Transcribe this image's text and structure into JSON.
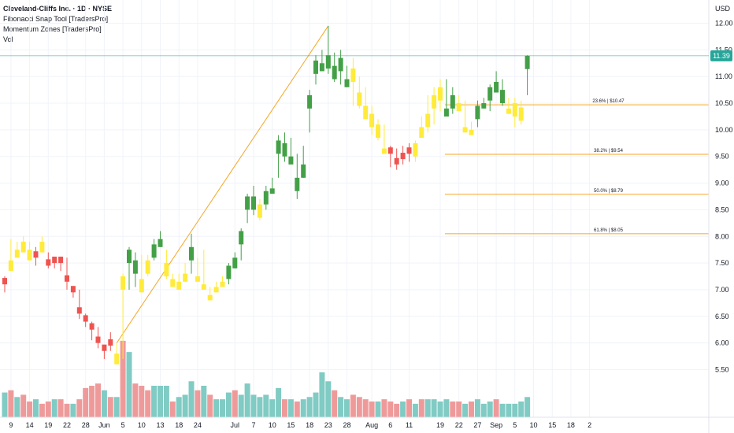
{
  "legend": {
    "title": "Cleveland-Cliffs Inc. · 1D · NYSE",
    "indicators": [
      "Fibonacci Snap Tool [TradersPro]",
      "Momentum Zones [TradersPro]",
      "Vol"
    ]
  },
  "axis": {
    "currency": "USD"
  },
  "last_price": {
    "value": 11.39,
    "label": "11.39",
    "color": "#26a69a"
  },
  "colors": {
    "up": "#43a047",
    "down": "#ef5350",
    "neutral": "#ffeb3b",
    "vol_up": "#80cbc4",
    "vol_down": "#ef9a9a",
    "fib": "#f5a623"
  },
  "chart_data": {
    "type": "candlestick",
    "y_ticks": [
      "5.50",
      "6.00",
      "6.50",
      "7.00",
      "7.50",
      "8.00",
      "8.50",
      "9.00",
      "9.50",
      "10.00",
      "10.50",
      "11.00",
      "11.50",
      "12.00"
    ],
    "ylim": [
      5.3,
      12.2
    ],
    "x_ticks": [
      {
        "label": "9",
        "i": 1
      },
      {
        "label": "14",
        "i": 4
      },
      {
        "label": "19",
        "i": 7
      },
      {
        "label": "22",
        "i": 10
      },
      {
        "label": "28",
        "i": 13
      },
      {
        "label": "Jun",
        "i": 16
      },
      {
        "label": "5",
        "i": 19
      },
      {
        "label": "10",
        "i": 22
      },
      {
        "label": "13",
        "i": 25
      },
      {
        "label": "18",
        "i": 28
      },
      {
        "label": "24",
        "i": 31
      },
      {
        "label": "Jul",
        "i": 37
      },
      {
        "label": "7",
        "i": 40
      },
      {
        "label": "10",
        "i": 43
      },
      {
        "label": "15",
        "i": 46
      },
      {
        "label": "18",
        "i": 49
      },
      {
        "label": "23",
        "i": 52
      },
      {
        "label": "28",
        "i": 55
      },
      {
        "label": "Aug",
        "i": 59
      },
      {
        "label": "6",
        "i": 62
      },
      {
        "label": "11",
        "i": 65
      },
      {
        "label": "19",
        "i": 70
      },
      {
        "label": "22",
        "i": 73
      },
      {
        "label": "27",
        "i": 76
      },
      {
        "label": "Sep",
        "i": 79
      },
      {
        "label": "5",
        "i": 82
      },
      {
        "label": "10",
        "i": 85
      },
      {
        "label": "15",
        "i": 88
      },
      {
        "label": "18",
        "i": 91
      },
      {
        "label": "2",
        "i": 94
      }
    ],
    "candles": [
      [
        7.1,
        7.1,
        6.95,
        7.25,
        "down"
      ],
      [
        7.55,
        7.55,
        7.35,
        7.95,
        "neutral"
      ],
      [
        7.75,
        7.75,
        7.6,
        7.9,
        "neutral"
      ],
      [
        7.9,
        7.9,
        7.7,
        8.0,
        "neutral"
      ],
      [
        7.75,
        7.75,
        7.55,
        7.9,
        "neutral"
      ],
      [
        7.6,
        7.6,
        7.45,
        7.8,
        "down"
      ],
      [
        7.9,
        7.9,
        7.7,
        8.0,
        "neutral"
      ],
      [
        7.45,
        7.45,
        7.4,
        7.7,
        "down"
      ],
      [
        7.5,
        7.5,
        7.4,
        7.6,
        "down"
      ],
      [
        7.5,
        7.5,
        7.35,
        7.55,
        "down"
      ],
      [
        7.15,
        7.15,
        7.0,
        7.6,
        "down"
      ],
      [
        6.95,
        6.95,
        6.85,
        7.05,
        "down"
      ],
      [
        6.55,
        6.55,
        6.45,
        7.0,
        "down"
      ],
      [
        6.4,
        6.4,
        6.3,
        6.55,
        "down"
      ],
      [
        6.25,
        6.25,
        6.05,
        6.4,
        "down"
      ],
      [
        6.0,
        6.0,
        5.9,
        6.3,
        "down"
      ],
      [
        5.85,
        5.85,
        5.7,
        5.95,
        "down"
      ],
      [
        5.95,
        5.95,
        5.85,
        6.2,
        "down"
      ],
      [
        5.8,
        5.8,
        5.6,
        6.0,
        "neutral"
      ],
      [
        7.25,
        7.25,
        5.7,
        7.3,
        "neutral"
      ],
      [
        7.75,
        7.75,
        7.0,
        7.8,
        "up"
      ],
      [
        7.55,
        7.55,
        7.05,
        7.7,
        "up"
      ],
      [
        7.2,
        7.2,
        6.95,
        7.65,
        "neutral"
      ],
      [
        7.55,
        7.55,
        7.25,
        7.65,
        "neutral"
      ],
      [
        7.85,
        7.85,
        7.55,
        7.95,
        "up"
      ],
      [
        7.95,
        7.95,
        7.8,
        8.1,
        "up"
      ],
      [
        7.5,
        7.5,
        7.2,
        7.75,
        "neutral"
      ],
      [
        7.2,
        7.2,
        7.05,
        7.3,
        "neutral"
      ],
      [
        7.15,
        7.15,
        7.0,
        7.3,
        "neutral"
      ],
      [
        7.3,
        7.3,
        7.15,
        7.5,
        "neutral"
      ],
      [
        7.8,
        7.8,
        7.3,
        8.05,
        "up"
      ],
      [
        7.25,
        7.25,
        7.15,
        7.6,
        "neutral"
      ],
      [
        7.1,
        7.1,
        7.0,
        7.75,
        "neutral"
      ],
      [
        6.9,
        6.9,
        6.8,
        7.05,
        "neutral"
      ],
      [
        7.05,
        7.05,
        6.95,
        7.15,
        "neutral"
      ],
      [
        7.15,
        7.15,
        7.05,
        7.25,
        "neutral"
      ],
      [
        7.45,
        7.45,
        7.1,
        7.5,
        "up"
      ],
      [
        7.6,
        7.6,
        7.4,
        7.7,
        "up"
      ],
      [
        8.1,
        8.1,
        7.55,
        8.15,
        "up"
      ],
      [
        8.75,
        8.75,
        8.25,
        8.8,
        "up"
      ],
      [
        8.75,
        8.75,
        8.4,
        8.95,
        "up"
      ],
      [
        8.6,
        8.6,
        8.3,
        8.7,
        "neutral"
      ],
      [
        8.85,
        8.85,
        8.5,
        8.95,
        "up"
      ],
      [
        8.9,
        8.9,
        8.8,
        9.1,
        "up"
      ],
      [
        9.8,
        9.8,
        9.1,
        9.9,
        "up"
      ],
      [
        9.75,
        9.75,
        9.4,
        9.95,
        "up"
      ],
      [
        9.5,
        9.5,
        9.35,
        9.85,
        "up"
      ],
      [
        9.1,
        9.1,
        8.7,
        9.55,
        "up"
      ],
      [
        9.35,
        9.35,
        9.1,
        9.7,
        "up"
      ],
      [
        10.65,
        10.65,
        9.95,
        10.75,
        "up"
      ],
      [
        11.3,
        11.3,
        10.85,
        11.4,
        "up"
      ],
      [
        11.25,
        11.25,
        11.1,
        11.5,
        "up"
      ],
      [
        11.4,
        11.4,
        11.05,
        11.95,
        "up"
      ],
      [
        11.2,
        11.2,
        10.9,
        11.45,
        "up"
      ],
      [
        11.35,
        11.35,
        10.85,
        11.5,
        "up"
      ],
      [
        10.95,
        10.95,
        10.8,
        11.2,
        "up"
      ],
      [
        11.15,
        11.15,
        10.45,
        11.35,
        "neutral"
      ],
      [
        10.7,
        10.7,
        10.4,
        11.0,
        "neutral"
      ],
      [
        10.45,
        10.45,
        10.2,
        10.8,
        "neutral"
      ],
      [
        10.3,
        10.3,
        9.9,
        10.45,
        "neutral"
      ],
      [
        10.1,
        10.1,
        9.8,
        10.2,
        "neutral"
      ],
      [
        9.65,
        9.65,
        9.55,
        10.1,
        "neutral"
      ],
      [
        9.55,
        9.55,
        9.3,
        9.7,
        "down"
      ],
      [
        9.35,
        9.35,
        9.25,
        9.65,
        "down"
      ],
      [
        9.45,
        9.45,
        9.35,
        9.7,
        "down"
      ],
      [
        9.55,
        9.55,
        9.4,
        9.75,
        "down"
      ],
      [
        9.75,
        9.75,
        9.4,
        9.8,
        "neutral"
      ],
      [
        10.05,
        10.05,
        9.85,
        10.25,
        "neutral"
      ],
      [
        10.3,
        10.3,
        9.95,
        10.65,
        "neutral"
      ],
      [
        10.65,
        10.65,
        10.1,
        10.8,
        "neutral"
      ],
      [
        10.8,
        10.8,
        10.35,
        10.95,
        "neutral"
      ],
      [
        10.4,
        10.4,
        10.25,
        10.95,
        "up"
      ],
      [
        10.65,
        10.65,
        10.3,
        10.8,
        "up"
      ],
      [
        10.5,
        10.5,
        10.35,
        10.65,
        "neutral"
      ],
      [
        10.05,
        10.05,
        9.95,
        10.55,
        "neutral"
      ],
      [
        10.0,
        10.0,
        9.9,
        10.15,
        "neutral"
      ],
      [
        10.45,
        10.45,
        10.05,
        10.55,
        "up"
      ],
      [
        10.5,
        10.5,
        10.4,
        10.6,
        "up"
      ],
      [
        10.8,
        10.8,
        10.35,
        10.85,
        "up"
      ],
      [
        10.9,
        10.9,
        10.7,
        11.1,
        "up"
      ],
      [
        10.75,
        10.75,
        10.45,
        10.95,
        "up"
      ],
      [
        10.4,
        10.4,
        10.3,
        10.6,
        "neutral"
      ],
      [
        10.5,
        10.5,
        10.05,
        10.6,
        "neutral"
      ],
      [
        10.42,
        10.42,
        10.1,
        10.55,
        "neutral"
      ],
      [
        11.39,
        11.39,
        10.65,
        11.4,
        "up"
      ]
    ],
    "volume": [
      [
        0.55,
        "vol_up"
      ],
      [
        0.6,
        "vol_down"
      ],
      [
        0.45,
        "vol_up"
      ],
      [
        0.5,
        "vol_down"
      ],
      [
        0.35,
        "vol_down"
      ],
      [
        0.4,
        "vol_up"
      ],
      [
        0.3,
        "vol_down"
      ],
      [
        0.35,
        "vol_down"
      ],
      [
        0.4,
        "vol_up"
      ],
      [
        0.4,
        "vol_down"
      ],
      [
        0.3,
        "vol_down"
      ],
      [
        0.3,
        "vol_up"
      ],
      [
        0.4,
        "vol_down"
      ],
      [
        0.65,
        "vol_down"
      ],
      [
        0.7,
        "vol_down"
      ],
      [
        0.75,
        "vol_down"
      ],
      [
        0.6,
        "vol_up"
      ],
      [
        0.45,
        "vol_down"
      ],
      [
        0.45,
        "vol_up"
      ],
      [
        1.7,
        "vol_down"
      ],
      [
        1.45,
        "vol_up"
      ],
      [
        0.75,
        "vol_down"
      ],
      [
        0.7,
        "vol_down"
      ],
      [
        0.6,
        "vol_down"
      ],
      [
        0.7,
        "vol_up"
      ],
      [
        0.7,
        "vol_up"
      ],
      [
        0.7,
        "vol_up"
      ],
      [
        0.35,
        "vol_down"
      ],
      [
        0.45,
        "vol_up"
      ],
      [
        0.5,
        "vol_up"
      ],
      [
        0.8,
        "vol_up"
      ],
      [
        0.6,
        "vol_down"
      ],
      [
        0.7,
        "vol_up"
      ],
      [
        0.5,
        "vol_down"
      ],
      [
        0.4,
        "vol_up"
      ],
      [
        0.4,
        "vol_up"
      ],
      [
        0.55,
        "vol_up"
      ],
      [
        0.6,
        "vol_down"
      ],
      [
        0.5,
        "vol_up"
      ],
      [
        0.75,
        "vol_up"
      ],
      [
        0.5,
        "vol_up"
      ],
      [
        0.45,
        "vol_up"
      ],
      [
        0.5,
        "vol_up"
      ],
      [
        0.4,
        "vol_up"
      ],
      [
        0.65,
        "vol_up"
      ],
      [
        0.4,
        "vol_down"
      ],
      [
        0.4,
        "vol_up"
      ],
      [
        0.35,
        "vol_down"
      ],
      [
        0.4,
        "vol_up"
      ],
      [
        0.45,
        "vol_up"
      ],
      [
        0.55,
        "vol_up"
      ],
      [
        1.0,
        "vol_up"
      ],
      [
        0.8,
        "vol_up"
      ],
      [
        0.6,
        "vol_down"
      ],
      [
        0.45,
        "vol_up"
      ],
      [
        0.4,
        "vol_up"
      ],
      [
        0.5,
        "vol_down"
      ],
      [
        0.45,
        "vol_down"
      ],
      [
        0.4,
        "vol_down"
      ],
      [
        0.35,
        "vol_down"
      ],
      [
        0.35,
        "vol_up"
      ],
      [
        0.4,
        "vol_down"
      ],
      [
        0.35,
        "vol_down"
      ],
      [
        0.3,
        "vol_down"
      ],
      [
        0.35,
        "vol_up"
      ],
      [
        0.4,
        "vol_down"
      ],
      [
        0.3,
        "vol_up"
      ],
      [
        0.4,
        "vol_down"
      ],
      [
        0.4,
        "vol_up"
      ],
      [
        0.4,
        "vol_up"
      ],
      [
        0.35,
        "vol_up"
      ],
      [
        0.4,
        "vol_up"
      ],
      [
        0.35,
        "vol_down"
      ],
      [
        0.35,
        "vol_down"
      ],
      [
        0.3,
        "vol_up"
      ],
      [
        0.35,
        "vol_down"
      ],
      [
        0.4,
        "vol_up"
      ],
      [
        0.3,
        "vol_up"
      ],
      [
        0.35,
        "vol_up"
      ],
      [
        0.4,
        "vol_down"
      ],
      [
        0.3,
        "vol_up"
      ],
      [
        0.3,
        "vol_up"
      ],
      [
        0.3,
        "vol_up"
      ],
      [
        0.35,
        "vol_up"
      ],
      [
        0.45,
        "vol_up"
      ]
    ],
    "trendline": {
      "from": {
        "i": 18,
        "price": 6.0
      },
      "to": {
        "i": 52,
        "price": 11.95
      }
    },
    "fib_levels": [
      {
        "label": "23.6% | $10.47",
        "price": 10.47
      },
      {
        "label": "38.2% | $9.54",
        "price": 9.54
      },
      {
        "label": "50.0% | $8.79",
        "price": 8.79
      },
      {
        "label": "61.8% | $8.05",
        "price": 8.05
      }
    ],
    "fib_start_i": 71
  }
}
